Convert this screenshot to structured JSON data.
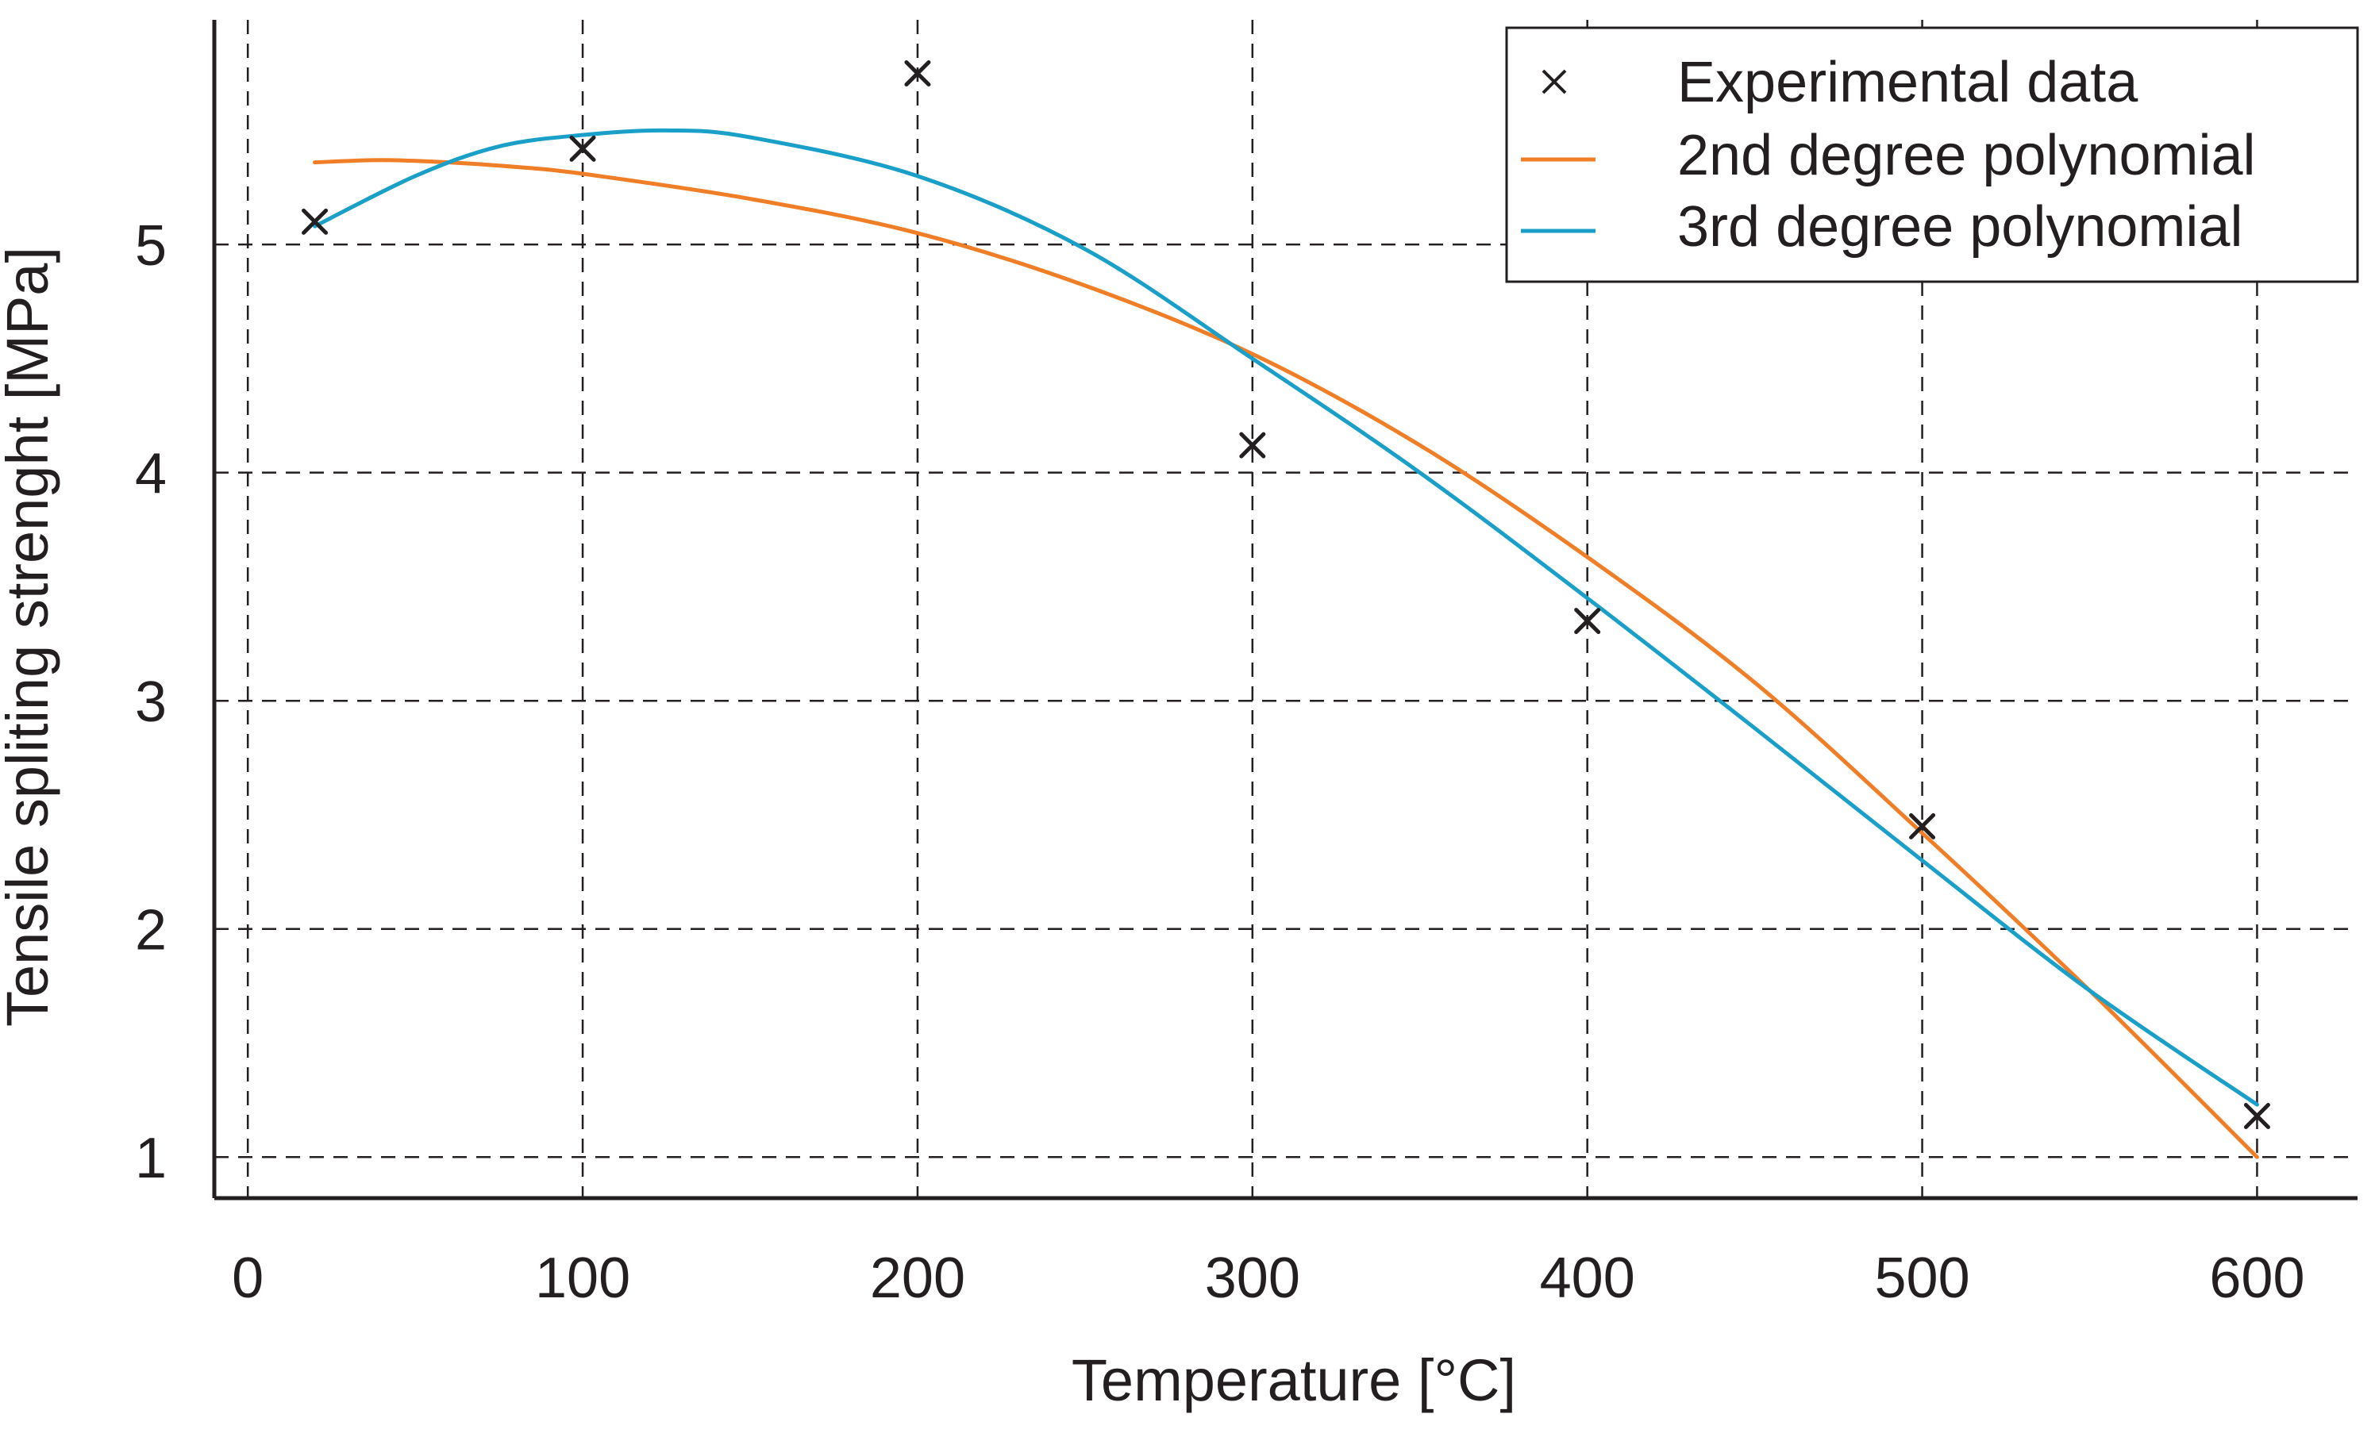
{
  "chart_data": {
    "type": "line",
    "title": "",
    "xlabel": "Temperature [°C]",
    "ylabel": "Tensile spliting strenght [MPa]",
    "xlim": [
      -10,
      630
    ],
    "ylim": [
      0.82,
      5.95
    ],
    "xticks": [
      0,
      100,
      200,
      300,
      400,
      500,
      600
    ],
    "yticks": [
      1,
      2,
      3,
      4,
      5
    ],
    "xtick_labels": [
      "0",
      "100",
      "200",
      "300",
      "400",
      "500",
      "600"
    ],
    "ytick_labels": [
      "1",
      "2",
      "3",
      "4",
      "5"
    ],
    "grid": true,
    "legend_position": "top-right",
    "legend": [
      "Experimental data",
      "2nd degree polynomial",
      "3rd degree polynomial"
    ],
    "series": [
      {
        "name": "Experimental data",
        "kind": "scatter",
        "marker": "x",
        "color": "#231f20",
        "x": [
          20,
          100,
          200,
          300,
          400,
          500,
          600
        ],
        "y": [
          5.1,
          5.42,
          5.75,
          4.12,
          3.35,
          2.45,
          1.18
        ]
      },
      {
        "name": "2nd degree polynomial",
        "kind": "line",
        "color": "#f07e26",
        "x": [
          20,
          40,
          60,
          80,
          100,
          150,
          200,
          250,
          300,
          350,
          400,
          450,
          500,
          550,
          600
        ],
        "y": [
          5.36,
          5.37,
          5.36,
          5.34,
          5.31,
          5.2,
          5.05,
          4.82,
          4.52,
          4.12,
          3.63,
          3.08,
          2.42,
          1.73,
          1.0
        ]
      },
      {
        "name": "3rd degree polynomial",
        "kind": "line",
        "color": "#1aa0c8",
        "x": [
          20,
          50,
          75,
          100,
          125,
          150,
          200,
          250,
          300,
          350,
          400,
          450,
          500,
          550,
          600
        ],
        "y": [
          5.08,
          5.3,
          5.43,
          5.48,
          5.5,
          5.47,
          5.3,
          4.98,
          4.5,
          4.0,
          3.45,
          2.88,
          2.3,
          1.73,
          1.23
        ]
      }
    ]
  }
}
